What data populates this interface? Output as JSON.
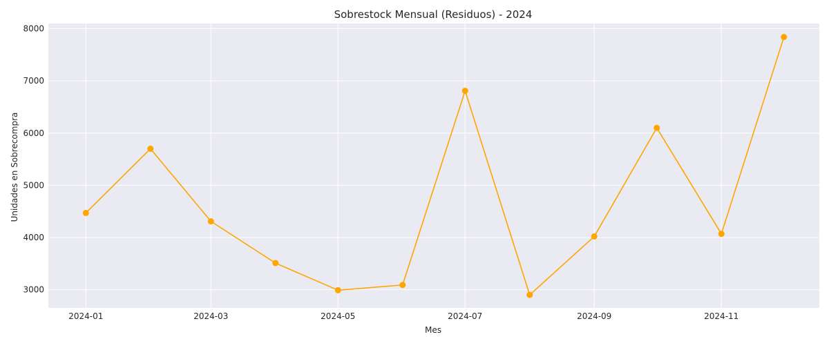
{
  "chart_data": {
    "type": "line",
    "title": "Sobrestock Mensual (Residuos) - 2024",
    "xlabel": "Mes",
    "ylabel": "Unidades en Sobrecompra",
    "x": [
      "2024-01",
      "2024-02",
      "2024-03",
      "2024-04",
      "2024-05",
      "2024-06",
      "2024-07",
      "2024-08",
      "2024-09",
      "2024-10",
      "2024-11",
      "2024-12"
    ],
    "series": [
      {
        "values": [
          4470,
          5700,
          4310,
          3510,
          2990,
          3090,
          6810,
          2900,
          4020,
          6100,
          4070,
          7840
        ],
        "color": "#FFA500",
        "marker": "circle"
      }
    ],
    "x_ticks": [
      "2024-01",
      "2024-03",
      "2024-05",
      "2024-07",
      "2024-09",
      "2024-11"
    ],
    "y_ticks": [
      3000,
      4000,
      5000,
      6000,
      7000,
      8000
    ],
    "ylim": [
      2650,
      8100
    ],
    "xlim": [
      "2023-12-14",
      "2024-12-18"
    ],
    "grid": true,
    "colors": {
      "plot_background": "#EAEAF2",
      "grid": "#FFFFFF",
      "line": "#FFA500"
    }
  }
}
